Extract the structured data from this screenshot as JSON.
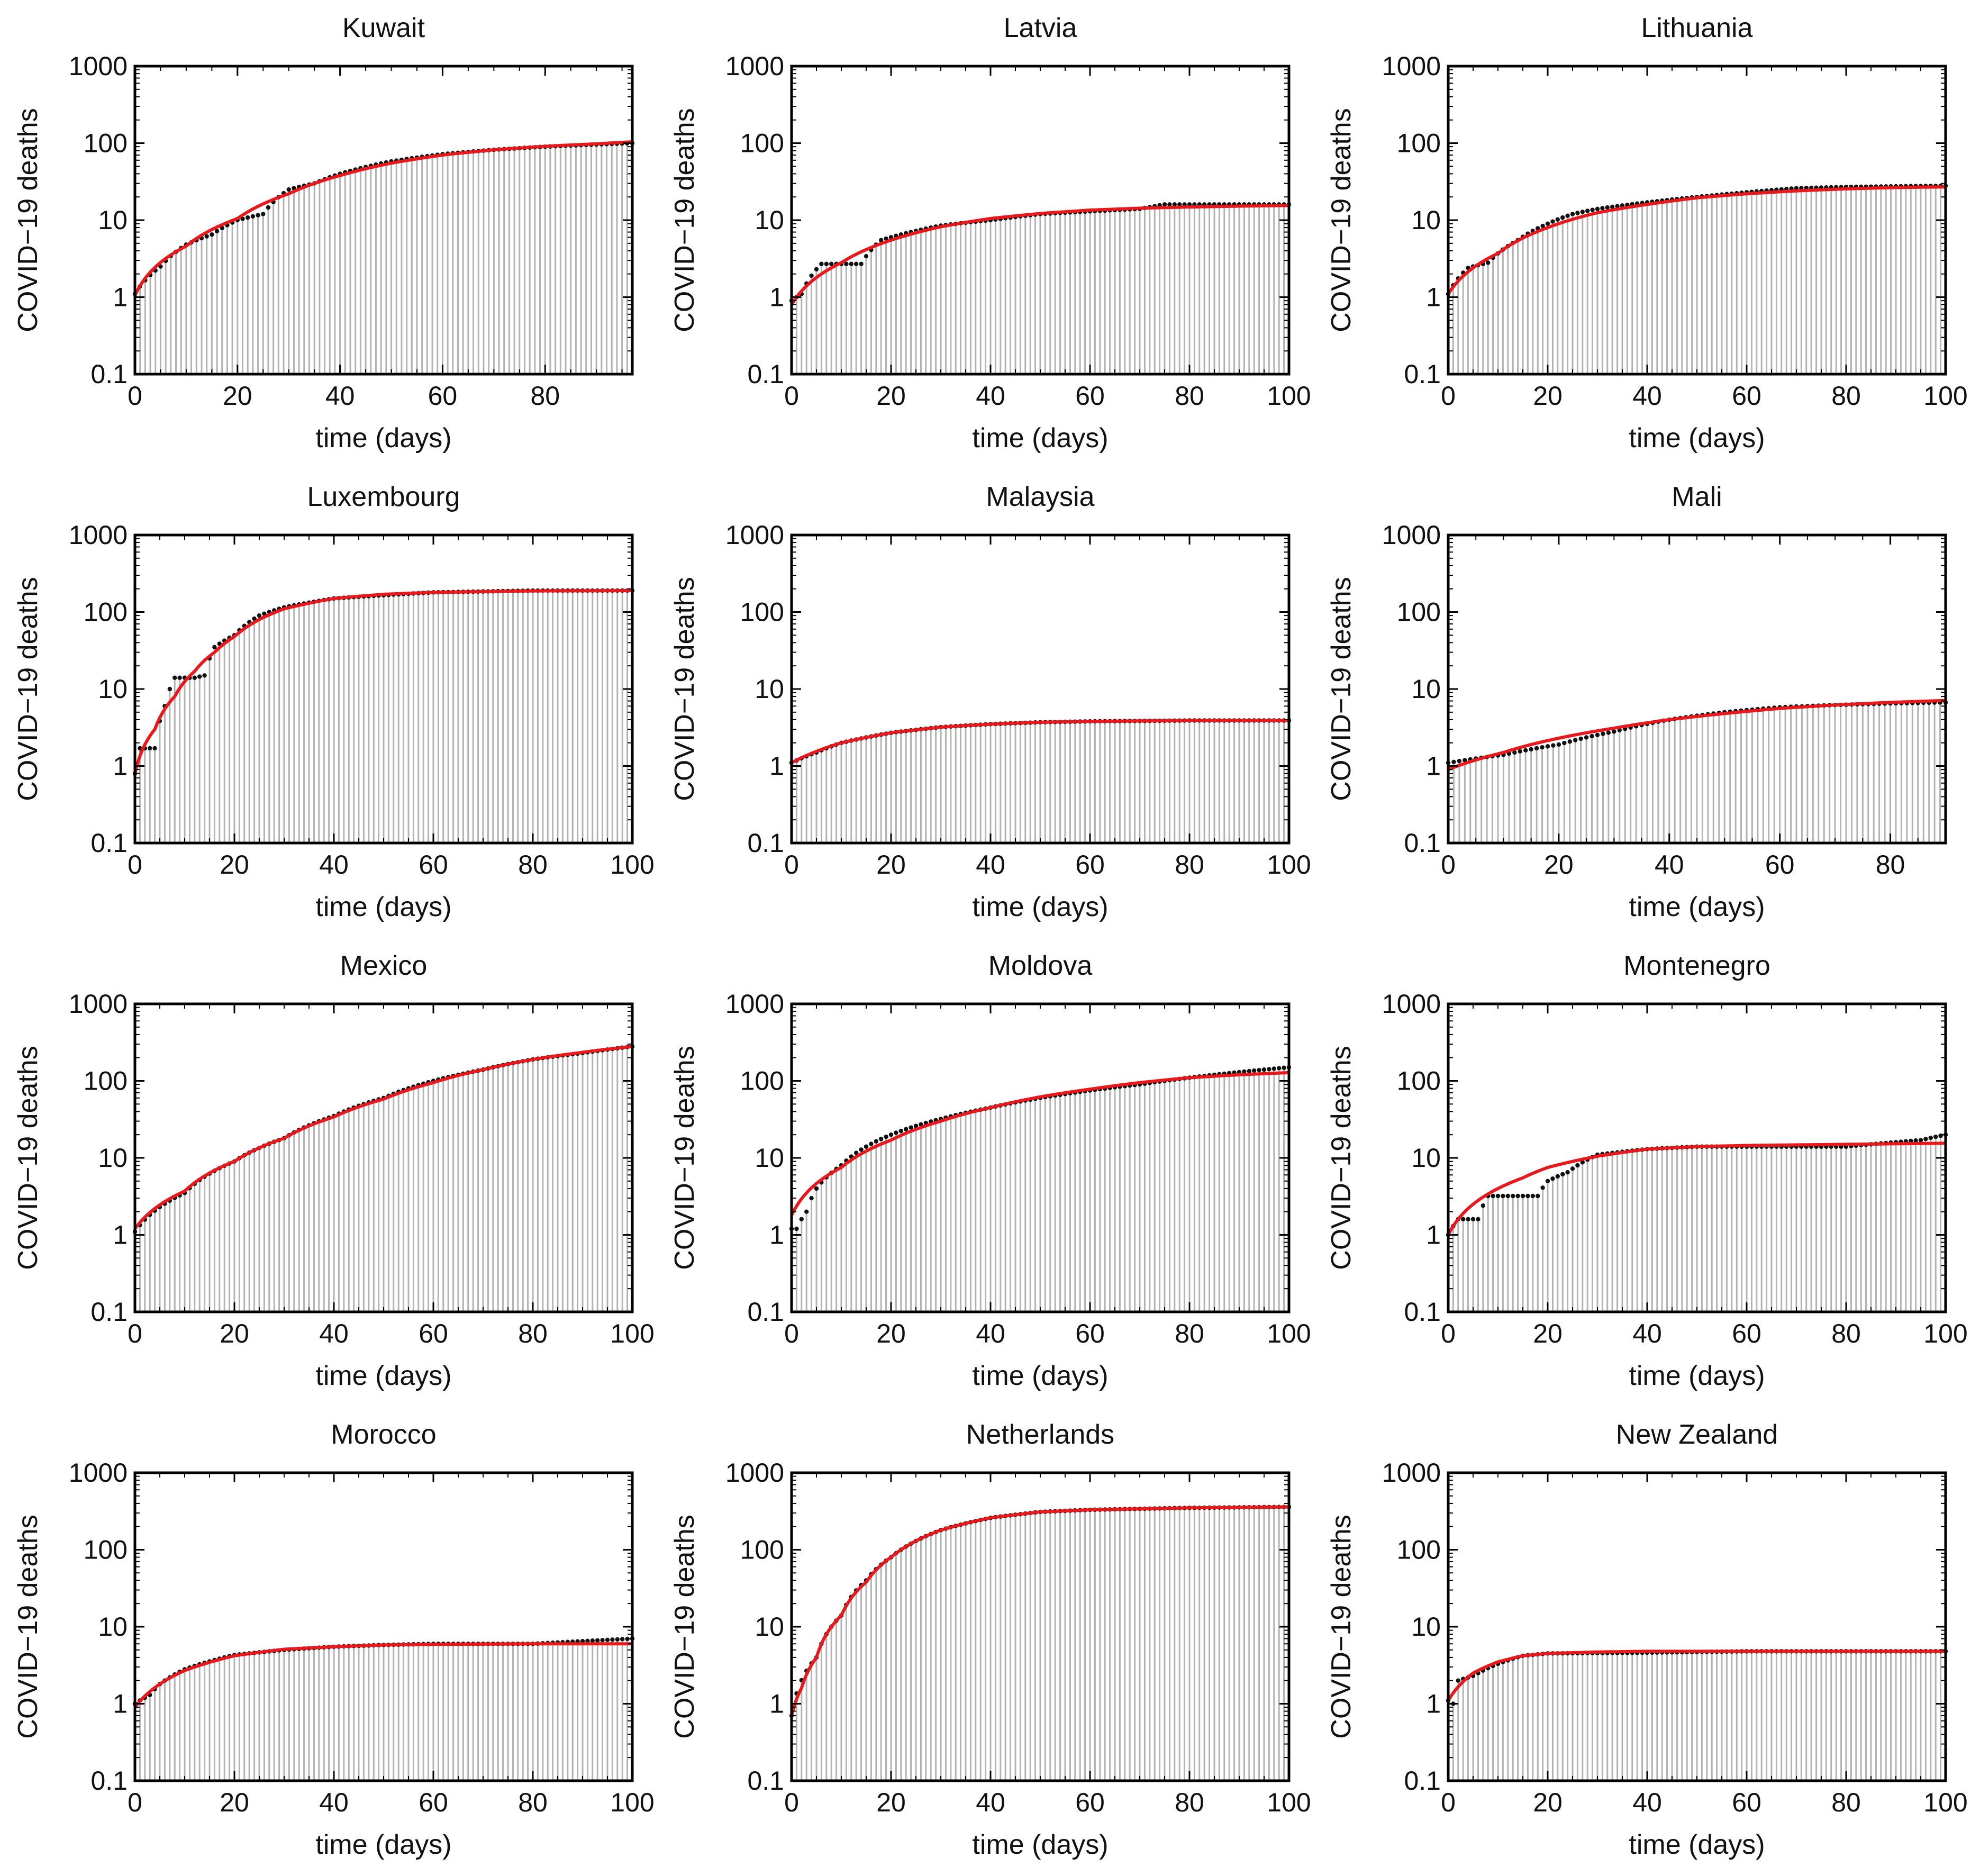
{
  "figure": {
    "xlabel": "time (days)",
    "ylabel": "COVID−19 deaths",
    "y_ticks": [
      "0.1",
      "1",
      "10",
      "100",
      "1000"
    ],
    "colors": {
      "bar": "#b3b3b3",
      "point": "#111111",
      "fit": "#e8191c",
      "axis": "#000000"
    }
  },
  "chart_data": [
    {
      "type": "bar",
      "title": "Kuwait",
      "scale_y": "log",
      "xlim": [
        0,
        97
      ],
      "ylim": [
        0.1,
        1000
      ],
      "x_ticks": [
        0,
        20,
        40,
        60,
        80
      ],
      "series": [
        {
          "x": [
            0,
            5,
            10,
            15,
            20,
            25,
            30,
            35,
            40,
            50,
            60,
            70,
            80,
            97
          ],
          "values": [
            1.1,
            2.5,
            4.8,
            6.5,
            10,
            12,
            25,
            30,
            40,
            58,
            72,
            82,
            90,
            100
          ]
        }
      ],
      "fit": {
        "x": [
          0,
          10,
          20,
          30,
          40,
          50,
          60,
          70,
          80,
          90,
          97
        ],
        "values": [
          1.05,
          4.6,
          10.5,
          22,
          38,
          55,
          70,
          82,
          91,
          98,
          104
        ]
      }
    },
    {
      "type": "bar",
      "title": "Latvia",
      "scale_y": "log",
      "xlim": [
        0,
        100
      ],
      "ylim": [
        0.1,
        1000
      ],
      "x_ticks": [
        0,
        20,
        40,
        60,
        80,
        100
      ],
      "series": [
        {
          "x": [
            0,
            2,
            6,
            10,
            14,
            18,
            22,
            30,
            40,
            50,
            60,
            70,
            75,
            100
          ],
          "values": [
            0.9,
            1.1,
            2.7,
            2.7,
            2.7,
            5.5,
            6.5,
            8.5,
            10,
            12,
            13,
            14,
            16,
            16
          ]
        }
      ],
      "fit": {
        "x": [
          0,
          10,
          20,
          30,
          40,
          50,
          60,
          70,
          80,
          90,
          100
        ],
        "values": [
          0.8,
          2.8,
          5.5,
          8.2,
          10.5,
          12.2,
          13.5,
          14.3,
          14.8,
          15.2,
          15.5
        ]
      }
    },
    {
      "type": "bar",
      "title": "Lithuania",
      "scale_y": "log",
      "xlim": [
        0,
        100
      ],
      "ylim": [
        0.1,
        1000
      ],
      "x_ticks": [
        0,
        20,
        40,
        60,
        80,
        100
      ],
      "series": [
        {
          "x": [
            0,
            4,
            8,
            14,
            20,
            25,
            30,
            40,
            50,
            60,
            70,
            80,
            100
          ],
          "values": [
            1.1,
            2.4,
            2.8,
            5.5,
            9,
            12,
            14,
            17,
            20,
            23,
            26,
            27,
            28
          ]
        }
      ],
      "fit": {
        "x": [
          0,
          10,
          20,
          30,
          40,
          50,
          60,
          70,
          80,
          90,
          100
        ],
        "values": [
          1.1,
          3.7,
          8,
          12.5,
          16,
          19.5,
          22,
          24,
          25.5,
          26.5,
          27
        ]
      }
    },
    {
      "type": "bar",
      "title": "Luxembourg",
      "scale_y": "log",
      "xlim": [
        0,
        100
      ],
      "ylim": [
        0.1,
        1000
      ],
      "x_ticks": [
        0,
        20,
        40,
        60,
        80,
        100
      ],
      "series": [
        {
          "x": [
            0,
            1,
            4,
            6,
            8,
            10,
            12,
            14,
            16,
            20,
            25,
            30,
            40,
            60,
            80,
            100
          ],
          "values": [
            0.8,
            1.7,
            1.7,
            6,
            14,
            14,
            14,
            15,
            35,
            50,
            90,
            115,
            150,
            180,
            190,
            190
          ]
        }
      ],
      "fit": {
        "x": [
          0,
          4,
          8,
          12,
          16,
          20,
          25,
          30,
          40,
          50,
          60,
          80,
          100
        ],
        "values": [
          0.8,
          3,
          8,
          17,
          30,
          48,
          80,
          110,
          150,
          170,
          180,
          188,
          190
        ]
      }
    },
    {
      "type": "bar",
      "title": "Malaysia",
      "scale_y": "log",
      "xlim": [
        0,
        100
      ],
      "ylim": [
        0.1,
        1000
      ],
      "x_ticks": [
        0,
        20,
        40,
        60,
        80,
        100
      ],
      "series": [
        {
          "x": [
            0,
            5,
            10,
            20,
            30,
            40,
            50,
            60,
            80,
            100
          ],
          "values": [
            1.1,
            1.5,
            2,
            2.7,
            3.2,
            3.5,
            3.7,
            3.8,
            3.9,
            3.9
          ]
        }
      ],
      "fit": {
        "x": [
          0,
          10,
          20,
          30,
          40,
          50,
          60,
          80,
          100
        ],
        "values": [
          1.1,
          2,
          2.7,
          3.2,
          3.5,
          3.7,
          3.8,
          3.9,
          3.9
        ]
      }
    },
    {
      "type": "bar",
      "title": "Mali",
      "scale_y": "log",
      "xlim": [
        0,
        90
      ],
      "ylim": [
        0.1,
        1000
      ],
      "x_ticks": [
        0,
        20,
        40,
        60,
        80
      ],
      "series": [
        {
          "x": [
            0,
            10,
            20,
            30,
            40,
            50,
            60,
            70,
            80,
            90
          ],
          "values": [
            1.1,
            1.4,
            1.9,
            2.8,
            4,
            5,
            5.8,
            6.2,
            6.5,
            6.7
          ]
        }
      ],
      "fit": {
        "x": [
          0,
          10,
          20,
          30,
          40,
          50,
          60,
          70,
          80,
          90
        ],
        "values": [
          0.9,
          1.5,
          2.3,
          3.1,
          4,
          4.8,
          5.6,
          6.2,
          6.7,
          7.1
        ]
      }
    },
    {
      "type": "bar",
      "title": "Mexico",
      "scale_y": "log",
      "xlim": [
        0,
        100
      ],
      "ylim": [
        0.1,
        1000
      ],
      "x_ticks": [
        0,
        20,
        40,
        60,
        80,
        100
      ],
      "series": [
        {
          "x": [
            0,
            10,
            20,
            30,
            40,
            50,
            60,
            70,
            80,
            90,
            100
          ],
          "values": [
            1.1,
            3.5,
            9,
            18,
            35,
            60,
            100,
            140,
            190,
            230,
            280
          ]
        }
      ],
      "fit": {
        "x": [
          0,
          10,
          20,
          30,
          40,
          50,
          60,
          70,
          80,
          90,
          100
        ],
        "values": [
          1.2,
          3.7,
          9,
          18,
          34,
          58,
          95,
          140,
          190,
          235,
          280
        ]
      }
    },
    {
      "type": "bar",
      "title": "Moldova",
      "scale_y": "log",
      "xlim": [
        0,
        100
      ],
      "ylim": [
        0.1,
        1000
      ],
      "x_ticks": [
        0,
        20,
        40,
        60,
        80,
        100
      ],
      "series": [
        {
          "x": [
            1,
            3,
            5,
            10,
            20,
            30,
            40,
            50,
            60,
            70,
            80,
            90,
            100
          ],
          "values": [
            1.2,
            2,
            4,
            8,
            20,
            32,
            45,
            60,
            75,
            90,
            110,
            130,
            150
          ]
        }
      ],
      "fit": {
        "x": [
          0,
          10,
          20,
          30,
          40,
          50,
          60,
          70,
          80,
          90,
          100
        ],
        "values": [
          1.8,
          7.5,
          17,
          30,
          45,
          62,
          78,
          95,
          110,
          120,
          128
        ]
      }
    },
    {
      "type": "bar",
      "title": "Montenegro",
      "scale_y": "log",
      "xlim": [
        0,
        100
      ],
      "ylim": [
        0.1,
        1000
      ],
      "x_ticks": [
        0,
        20,
        40,
        60,
        80,
        100
      ],
      "series": [
        {
          "x": [
            0,
            2,
            6,
            8,
            12,
            18,
            20,
            24,
            30,
            40,
            50,
            60,
            80,
            95,
            100
          ],
          "values": [
            1,
            1.6,
            1.6,
            3.2,
            3.2,
            3.2,
            5,
            6.5,
            11,
            13,
            14,
            14,
            14,
            17,
            20
          ]
        }
      ],
      "fit": {
        "x": [
          0,
          5,
          10,
          15,
          20,
          25,
          30,
          40,
          50,
          60,
          80,
          100
        ],
        "values": [
          1,
          2.5,
          4,
          5.5,
          7.5,
          9,
          10.5,
          13,
          14,
          14.5,
          15,
          15.5
        ]
      }
    },
    {
      "type": "bar",
      "title": "Morocco",
      "scale_y": "log",
      "xlim": [
        0,
        100
      ],
      "ylim": [
        0.1,
        1000
      ],
      "x_ticks": [
        0,
        20,
        40,
        60,
        80,
        100
      ],
      "series": [
        {
          "x": [
            0,
            3,
            5,
            10,
            20,
            30,
            40,
            50,
            60,
            80,
            90,
            100
          ],
          "values": [
            1,
            1.3,
            1.8,
            2.8,
            4.3,
            5,
            5.5,
            5.8,
            6,
            6,
            6.5,
            7
          ]
        }
      ],
      "fit": {
        "x": [
          0,
          10,
          20,
          30,
          40,
          50,
          60,
          80,
          100
        ],
        "values": [
          0.9,
          2.7,
          4.2,
          5.1,
          5.5,
          5.8,
          5.9,
          6,
          6
        ]
      }
    },
    {
      "type": "bar",
      "title": "Netherlands",
      "scale_y": "log",
      "xlim": [
        0,
        100
      ],
      "ylim": [
        0.1,
        1000
      ],
      "x_ticks": [
        0,
        20,
        40,
        60,
        80,
        100
      ],
      "series": [
        {
          "x": [
            0,
            5,
            10,
            15,
            20,
            25,
            30,
            40,
            50,
            60,
            80,
            100
          ],
          "values": [
            0.7,
            4,
            14,
            40,
            80,
            130,
            180,
            260,
            310,
            330,
            350,
            360
          ]
        }
      ],
      "fit": {
        "x": [
          0,
          2,
          5,
          10,
          15,
          20,
          25,
          30,
          40,
          50,
          60,
          80,
          100
        ],
        "values": [
          0.7,
          1.6,
          4,
          14,
          38,
          80,
          130,
          180,
          260,
          310,
          330,
          350,
          360
        ]
      }
    },
    {
      "type": "bar",
      "title": "New Zealand",
      "scale_y": "log",
      "xlim": [
        0,
        100
      ],
      "ylim": [
        0.1,
        1000
      ],
      "x_ticks": [
        0,
        20,
        40,
        60,
        80,
        100
      ],
      "series": [
        {
          "x": [
            0,
            1,
            2,
            5,
            10,
            15,
            20,
            40,
            60,
            80,
            100
          ],
          "values": [
            1.1,
            1,
            2,
            2.3,
            3.3,
            4.2,
            4.5,
            4.6,
            4.8,
            4.8,
            4.8
          ]
        }
      ],
      "fit": {
        "x": [
          0,
          5,
          10,
          15,
          20,
          30,
          40,
          60,
          80,
          100
        ],
        "values": [
          1.1,
          2.5,
          3.5,
          4.2,
          4.5,
          4.7,
          4.8,
          4.8,
          4.8,
          4.8
        ]
      }
    }
  ]
}
